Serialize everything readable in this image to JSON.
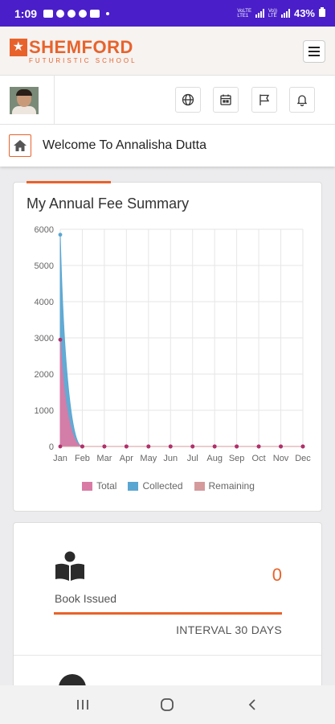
{
  "status_bar": {
    "time": "1:09",
    "network_1": "VoLTE",
    "network_2": "LTE",
    "battery": "43%"
  },
  "header": {
    "brand": "SHEMFORD",
    "tagline": "FUTURISTIC SCHOOL",
    "menu_icon": "hamburger-icon"
  },
  "toolbar": {
    "icons": [
      "globe-icon",
      "calendar-icon",
      "flag-icon",
      "bell-icon"
    ]
  },
  "welcome": {
    "text": "Welcome To Annalisha Dutta",
    "icon": "home-icon"
  },
  "fee_summary": {
    "title": "My Annual Fee Summary"
  },
  "chart_data": {
    "type": "area",
    "categories": [
      "Jan",
      "Feb",
      "Mar",
      "Apr",
      "May",
      "Jun",
      "Jul",
      "Aug",
      "Sep",
      "Oct",
      "Nov",
      "Dec"
    ],
    "series": [
      {
        "name": "Total",
        "color": "#d97aa6",
        "values": [
          2950,
          0,
          0,
          0,
          0,
          0,
          0,
          0,
          0,
          0,
          0,
          0
        ]
      },
      {
        "name": "Collected",
        "color": "#5aa6d2",
        "values": [
          5850,
          0,
          0,
          0,
          0,
          0,
          0,
          0,
          0,
          0,
          0,
          0
        ]
      },
      {
        "name": "Remaining",
        "color": "#d59a9c",
        "values": [
          0,
          0,
          0,
          0,
          0,
          0,
          0,
          0,
          0,
          0,
          0,
          0
        ]
      }
    ],
    "yticks": [
      0,
      1000,
      2000,
      3000,
      4000,
      5000,
      6000
    ],
    "ylim": [
      0,
      6000
    ],
    "legend": "bottom",
    "grid": true
  },
  "book_card": {
    "count": "0",
    "label": "Book Issued",
    "interval": "INTERVAL 30 DAYS",
    "icon": "book-reader-icon"
  },
  "colors": {
    "accent": "#e8632b",
    "status_bar": "#4a1fc9"
  }
}
